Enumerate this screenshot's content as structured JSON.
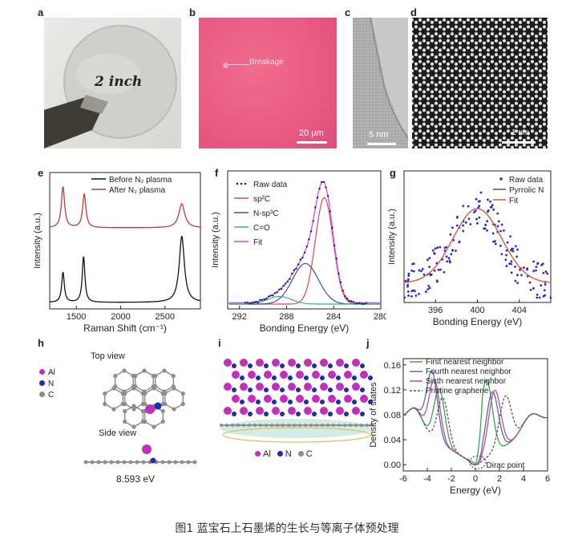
{
  "caption": "图1 蓝宝石上石墨烯的生长与等离子体预处理",
  "panel_labels": {
    "a": "a",
    "b": "b",
    "c": "c",
    "d": "d",
    "e": "e",
    "f": "f",
    "g": "g",
    "h": "h",
    "i": "i",
    "j": "j"
  },
  "panel_a": {
    "wafer_text": "2 inch"
  },
  "panel_b": {
    "annotation": "Breakage",
    "scale": "20 μm"
  },
  "panel_c": {
    "scale": "5 nm"
  },
  "panel_d": {
    "scale": "1 nm"
  },
  "panel_h": {
    "top_view": "Top view",
    "side_view": "Side view",
    "energy": "8.593 eV",
    "legend": [
      {
        "label": "Al",
        "color": "#c22fbd"
      },
      {
        "label": "N",
        "color": "#1c2fa8"
      },
      {
        "label": "C",
        "color": "#8a8a8a"
      }
    ]
  },
  "panel_i": {
    "legend": [
      {
        "label": "Al",
        "color": "#c22fbd"
      },
      {
        "label": "N",
        "color": "#1c2fa8"
      },
      {
        "label": "C",
        "color": "#8a8a8a"
      }
    ]
  },
  "chart_data": [
    {
      "id": "e",
      "type": "line",
      "xlabel": "Raman Shift (cm⁻¹)",
      "ylabel": "Intensity (a.u.)",
      "xlim": [
        1200,
        2900
      ],
      "xticks": [
        1500,
        2000,
        2500
      ],
      "series": [
        {
          "name": "Before N₂ plasma",
          "color": "#111111",
          "offset": 0.0,
          "peaks": [
            {
              "x": 1350,
              "h": 0.25,
              "w": 18
            },
            {
              "x": 1582,
              "h": 0.38,
              "w": 18
            },
            {
              "x": 2690,
              "h": 0.55,
              "w": 35
            }
          ]
        },
        {
          "name": "After N₂ plasma",
          "color": "#c0393b",
          "offset": 0.62,
          "peaks": [
            {
              "x": 1350,
              "h": 0.34,
              "w": 22
            },
            {
              "x": 1590,
              "h": 0.28,
              "w": 22
            },
            {
              "x": 2690,
              "h": 0.2,
              "w": 40
            }
          ]
        }
      ]
    },
    {
      "id": "f",
      "type": "line",
      "xlabel": "Bonding Energy (eV)",
      "ylabel": "Intensity (a.u.)",
      "xlim": [
        293,
        280
      ],
      "xticks": [
        292,
        288,
        284,
        280
      ],
      "series": [
        {
          "name": "Raw data",
          "style": "dots",
          "color": "#1a1a6e"
        },
        {
          "name": "sp²C",
          "color": "#d94a4a",
          "peak": {
            "x": 284.8,
            "h": 0.84,
            "w": 0.75
          }
        },
        {
          "name": "N-sp³C",
          "color": "#3a4fb0",
          "peak": {
            "x": 286.4,
            "h": 0.32,
            "w": 1.1
          }
        },
        {
          "name": "C=O",
          "color": "#2fb59a",
          "peak": {
            "x": 288.6,
            "h": 0.06,
            "w": 1.0
          }
        },
        {
          "name": "Fit",
          "color": "#e04ad8"
        }
      ]
    },
    {
      "id": "g",
      "type": "scatter",
      "xlabel": "Bonding Energy (eV)",
      "ylabel": "Intensity (a.u.)",
      "xlim": [
        393,
        407
      ],
      "xticks": [
        396,
        400,
        404
      ],
      "series": [
        {
          "name": "Raw data",
          "style": "dots",
          "color": "#2b2bcc"
        },
        {
          "name": "Pyrrolic N",
          "color": "#555555"
        },
        {
          "name": "Fit",
          "color": "#d9583b",
          "peak": {
            "x": 400,
            "h": 0.62,
            "w": 2.3,
            "base": 0.12
          }
        }
      ]
    },
    {
      "id": "j",
      "type": "line",
      "xlabel": "Energy (eV)",
      "ylabel": "Density of states",
      "xlim": [
        -6,
        6
      ],
      "ylim": [
        -0.01,
        0.17
      ],
      "xticks": [
        -6,
        -4,
        -2,
        0,
        2,
        4,
        6
      ],
      "yticks": [
        0.0,
        0.04,
        0.08,
        0.12,
        0.16
      ],
      "ytick_labels": [
        "0.00",
        "0.04",
        "0.08",
        "0.12",
        "0.16"
      ],
      "annotation": "Dirac point",
      "series": [
        {
          "name": "First nearest neighbor",
          "color": "#3aa54a",
          "lp": -3.0,
          "lh": 0.085,
          "rp": 0.9,
          "rh": 0.125
        },
        {
          "name": "Fourth nearest neighbor",
          "color": "#5566bb",
          "lp": -3.6,
          "lh": 0.105,
          "rp": 1.4,
          "rh": 0.1
        },
        {
          "name": "Sixth nearest neighbor",
          "color": "#c6507a",
          "lp": -3.4,
          "lh": 0.095,
          "rp": 1.6,
          "rh": 0.1
        },
        {
          "name": "Pristine graphene",
          "color": "#555555",
          "dashed": true,
          "lp": -2.7,
          "lh": 0.075,
          "rp": 2.5,
          "rh": 0.08
        }
      ]
    }
  ]
}
